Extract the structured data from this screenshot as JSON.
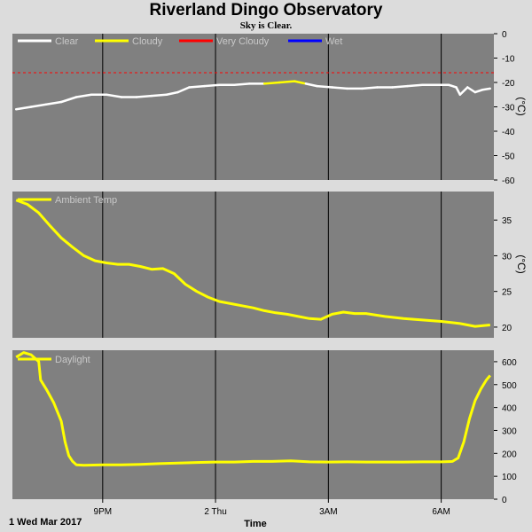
{
  "title": "Riverland Dingo Observatory",
  "subtitle": "Sky is Clear.",
  "colors": {
    "panel_bg": "#808080",
    "grid": "#000000",
    "clear": "#ffffff",
    "cloudy": "#ffff00",
    "very_cloudy": "#ff0000",
    "wet": "#0000ff"
  },
  "x_axis": {
    "label": "Time",
    "start_label": "1 Wed Mar 2017",
    "start_hour": 18.6,
    "end_hour": 31.4,
    "ticks": [
      {
        "hour": 21,
        "label": "9PM"
      },
      {
        "hour": 24,
        "label": "2 Thu"
      },
      {
        "hour": 27,
        "label": "3AM"
      },
      {
        "hour": 30,
        "label": "6AM"
      }
    ]
  },
  "chart_data": [
    {
      "type": "line",
      "panel": "sky",
      "unit": "(°C)",
      "ylim": [
        -60,
        0
      ],
      "yticks": [
        0,
        -10,
        -20,
        -30,
        -40,
        -50,
        -60
      ],
      "threshold": {
        "series": "Very Cloudy",
        "value": -16
      },
      "series": [
        {
          "name": "Clear",
          "color": "#ffffff"
        },
        {
          "name": "Cloudy",
          "color": "#ffff00"
        },
        {
          "name": "Very Cloudy",
          "color": "#ff0000"
        },
        {
          "name": "Wet",
          "color": "#0000ff"
        }
      ],
      "points": [
        [
          18.7,
          -31,
          "Clear"
        ],
        [
          19.1,
          -30,
          "Clear"
        ],
        [
          19.5,
          -29,
          "Clear"
        ],
        [
          19.9,
          -28,
          "Clear"
        ],
        [
          20.3,
          -26,
          "Clear"
        ],
        [
          20.7,
          -25,
          "Clear"
        ],
        [
          21.1,
          -25,
          "Clear"
        ],
        [
          21.5,
          -26,
          "Clear"
        ],
        [
          21.9,
          -26,
          "Clear"
        ],
        [
          22.3,
          -25.5,
          "Clear"
        ],
        [
          22.7,
          -25,
          "Clear"
        ],
        [
          23.0,
          -24,
          "Clear"
        ],
        [
          23.3,
          -22,
          "Clear"
        ],
        [
          23.7,
          -21.5,
          "Clear"
        ],
        [
          24.1,
          -21,
          "Clear"
        ],
        [
          24.5,
          -21,
          "Clear"
        ],
        [
          24.9,
          -20.5,
          "Clear"
        ],
        [
          25.3,
          -20.5,
          "Clear"
        ],
        [
          25.7,
          -20,
          "Cloudy"
        ],
        [
          26.1,
          -19.5,
          "Cloudy"
        ],
        [
          26.4,
          -20.5,
          "Cloudy"
        ],
        [
          26.7,
          -21.5,
          "Clear"
        ],
        [
          27.1,
          -22,
          "Clear"
        ],
        [
          27.5,
          -22.5,
          "Clear"
        ],
        [
          27.9,
          -22.5,
          "Clear"
        ],
        [
          28.3,
          -22,
          "Clear"
        ],
        [
          28.7,
          -22,
          "Clear"
        ],
        [
          29.1,
          -21.5,
          "Clear"
        ],
        [
          29.5,
          -21,
          "Clear"
        ],
        [
          29.9,
          -21,
          "Clear"
        ],
        [
          30.2,
          -21,
          "Clear"
        ],
        [
          30.4,
          -22,
          "Clear"
        ],
        [
          30.5,
          -25,
          "Clear"
        ],
        [
          30.7,
          -22,
          "Clear"
        ],
        [
          30.9,
          -24,
          "Clear"
        ],
        [
          31.1,
          -23,
          "Clear"
        ],
        [
          31.3,
          -22.5,
          "Clear"
        ]
      ]
    },
    {
      "type": "line",
      "panel": "ambient",
      "unit": "(°C)",
      "ylim": [
        18.5,
        39
      ],
      "yticks": [
        20,
        25,
        30,
        35
      ],
      "series": [
        {
          "name": "Ambient Temp",
          "color": "#ffff00"
        }
      ],
      "x": [
        18.7,
        19.0,
        19.3,
        19.6,
        19.9,
        20.2,
        20.5,
        20.8,
        21.1,
        21.4,
        21.7,
        22.0,
        22.3,
        22.6,
        22.9,
        23.2,
        23.5,
        23.8,
        24.1,
        24.4,
        24.7,
        25.0,
        25.3,
        25.6,
        25.9,
        26.2,
        26.5,
        26.8,
        27.1,
        27.4,
        27.7,
        28.0,
        28.5,
        29.0,
        29.5,
        30.0,
        30.5,
        30.9,
        31.3
      ],
      "values": [
        37.8,
        37.2,
        36,
        34.2,
        32.5,
        31.2,
        30,
        29.3,
        29,
        28.8,
        28.8,
        28.5,
        28.1,
        28.2,
        27.5,
        26,
        25,
        24.2,
        23.6,
        23.3,
        23,
        22.7,
        22.3,
        22,
        21.8,
        21.5,
        21.2,
        21.1,
        21.8,
        22.1,
        21.9,
        21.9,
        21.5,
        21.2,
        21,
        20.8,
        20.5,
        20.1,
        20.3
      ]
    },
    {
      "type": "line",
      "panel": "daylight",
      "unit": "",
      "ylim": [
        0,
        650
      ],
      "yticks": [
        0,
        100,
        200,
        300,
        400,
        500,
        600
      ],
      "series": [
        {
          "name": "Daylight",
          "color": "#ffff00"
        }
      ],
      "x": [
        18.7,
        18.9,
        19.1,
        19.3,
        19.35,
        19.5,
        19.7,
        19.9,
        20.0,
        20.1,
        20.2,
        20.3,
        20.5,
        21.0,
        21.5,
        22.0,
        22.5,
        23.0,
        23.5,
        24.0,
        24.5,
        25.0,
        25.5,
        26.0,
        26.5,
        27.0,
        27.5,
        28.0,
        28.5,
        29.0,
        29.5,
        30.0,
        30.3,
        30.45,
        30.6,
        30.75,
        30.9,
        31.05,
        31.2,
        31.3
      ],
      "values": [
        620,
        640,
        630,
        600,
        520,
        480,
        420,
        340,
        250,
        190,
        165,
        150,
        148,
        150,
        150,
        152,
        155,
        158,
        160,
        162,
        162,
        165,
        165,
        167,
        163,
        162,
        163,
        162,
        162,
        162,
        163,
        163,
        165,
        180,
        250,
        350,
        430,
        480,
        520,
        540
      ]
    }
  ]
}
